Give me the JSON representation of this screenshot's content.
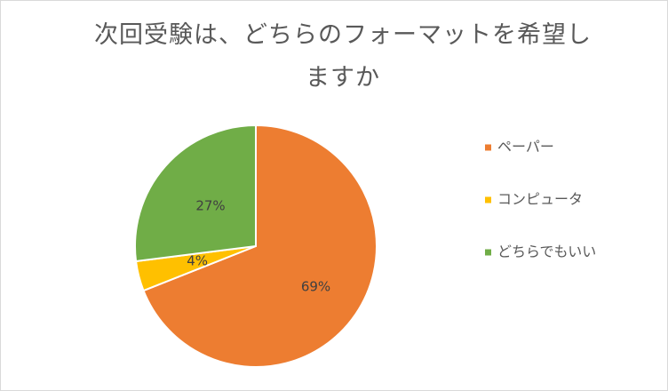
{
  "chart_data": {
    "type": "pie",
    "title": "次回受験は、どちらのフォーマットを希望しますか",
    "categories": [
      "ペーパー",
      "コンピュータ",
      "どちらでもいい"
    ],
    "values": [
      69,
      4,
      27
    ],
    "value_labels": [
      "69%",
      "4%",
      "27%"
    ],
    "colors": [
      "#ED7D31",
      "#FFC000",
      "#70AD47"
    ],
    "legend": "right"
  }
}
